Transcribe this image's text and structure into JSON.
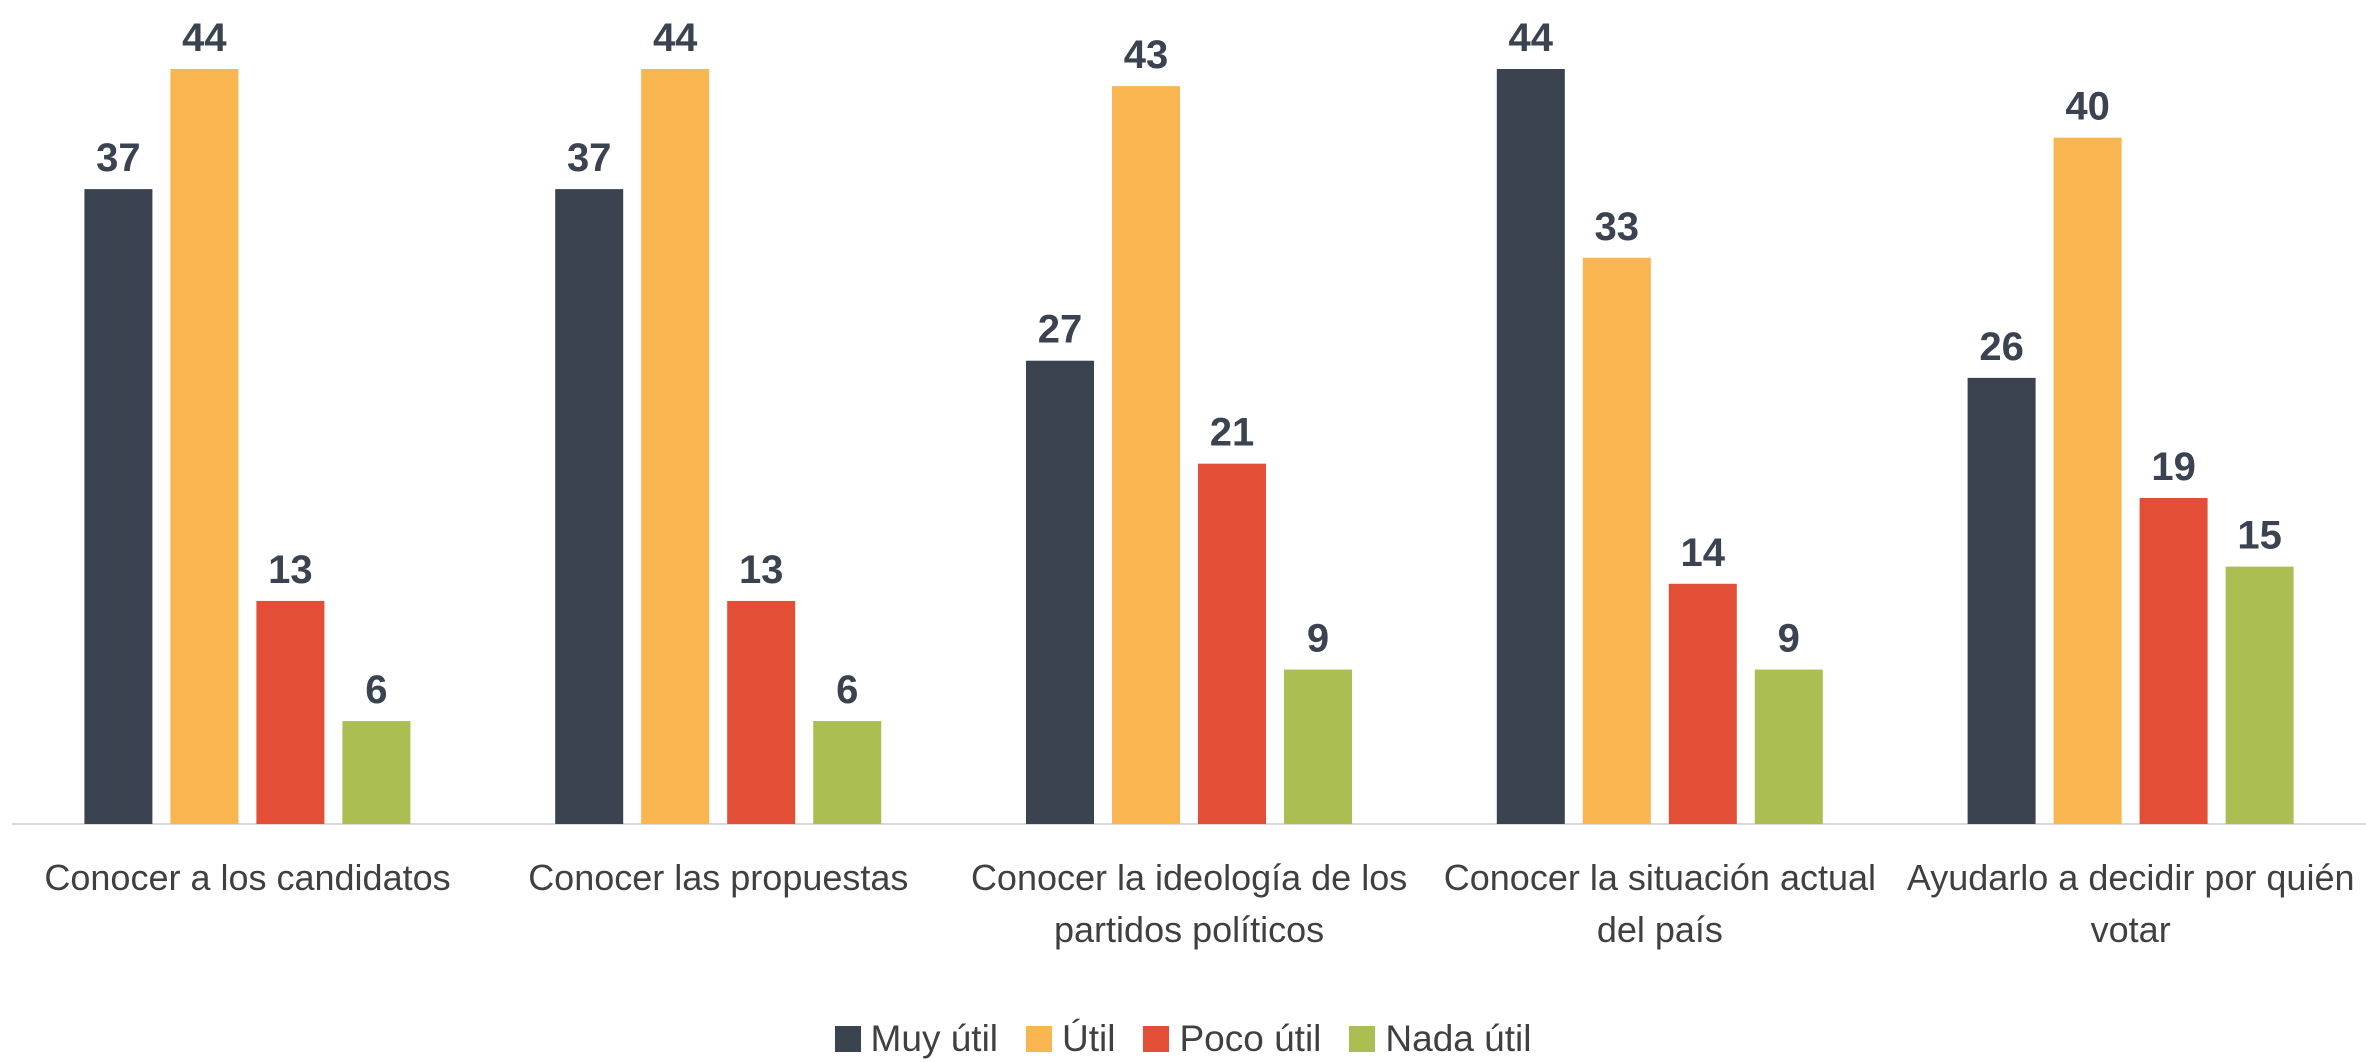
{
  "chart_data": {
    "type": "bar",
    "categories": [
      "Conocer a los candidatos",
      "Conocer las propuestas",
      "Conocer la ideología de los partidos políticos",
      "Conocer la situación actual del país",
      "Ayudarlo a decidir por quién votar"
    ],
    "series": [
      {
        "name": "Muy útil",
        "color": "#3b4250",
        "values": [
          37,
          37,
          27,
          44,
          26
        ]
      },
      {
        "name": "Útil",
        "color": "#f9b550",
        "values": [
          44,
          44,
          43,
          33,
          40
        ]
      },
      {
        "name": "Poco útil",
        "color": "#e34e36",
        "values": [
          13,
          13,
          21,
          14,
          19
        ]
      },
      {
        "name": "Nada útil",
        "color": "#abbe52",
        "values": [
          6,
          6,
          9,
          9,
          15
        ]
      }
    ],
    "legend": "bottom"
  }
}
